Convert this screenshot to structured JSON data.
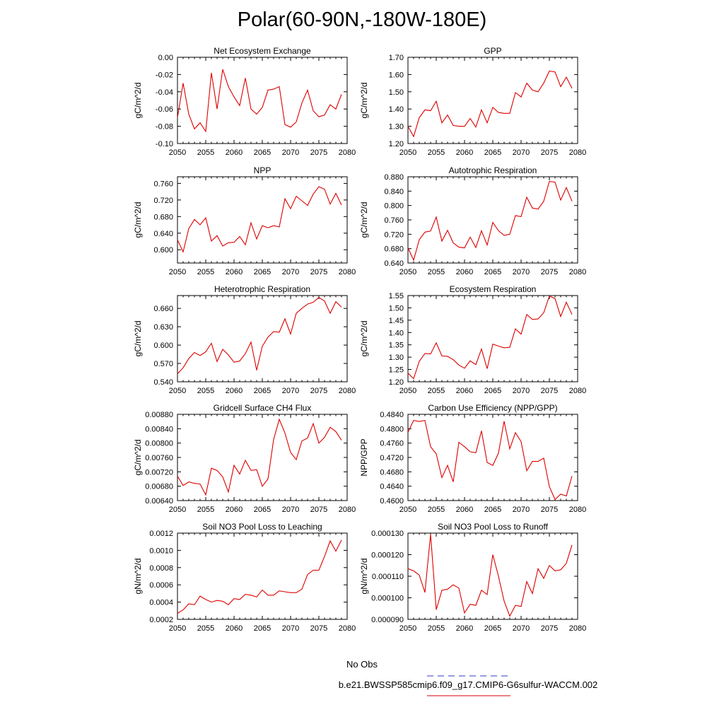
{
  "figure": {
    "title": "Polar(60-90N,-180W-180E)"
  },
  "legend": {
    "obs_label": "No Obs",
    "obs_color": "#3333cc",
    "model_label": "b.e21.BWSSP585cmip6.f09_g17.CMIP6-G6sulfur-WACCM.002",
    "model_color": "#dd0000"
  },
  "chart_data": [
    {
      "type": "line",
      "title": "Net Ecosystem Exchange",
      "ylabel": "gC/m^2/d",
      "xlim": [
        2050,
        2080
      ],
      "xticks": [
        "2050",
        "2055",
        "2060",
        "2065",
        "2070",
        "2075",
        "2080"
      ],
      "ylim": [
        -0.1,
        0.0
      ],
      "yticks": [
        "0.00",
        "-0.02",
        "-0.04",
        "-0.06",
        "-0.08",
        "-0.10"
      ],
      "x": [
        2050,
        2051,
        2052,
        2053,
        2054,
        2055,
        2056,
        2057,
        2058,
        2059,
        2060,
        2061,
        2062,
        2063,
        2064,
        2065,
        2066,
        2067,
        2068,
        2069,
        2070,
        2071,
        2072,
        2073,
        2074,
        2075,
        2076,
        2077,
        2078,
        2079
      ],
      "values": [
        -0.07,
        -0.03,
        -0.066,
        -0.083,
        -0.076,
        -0.086,
        -0.018,
        -0.06,
        -0.014,
        -0.034,
        -0.046,
        -0.056,
        -0.024,
        -0.06,
        -0.066,
        -0.058,
        -0.038,
        -0.037,
        -0.034,
        -0.078,
        -0.081,
        -0.075,
        -0.053,
        -0.038,
        -0.062,
        -0.069,
        -0.067,
        -0.055,
        -0.06,
        -0.043
      ],
      "grid": false
    },
    {
      "type": "line",
      "title": "GPP",
      "ylabel": "gC/m^2/d",
      "xlim": [
        2050,
        2080
      ],
      "xticks": [
        "2050",
        "2055",
        "2060",
        "2065",
        "2070",
        "2075",
        "2080"
      ],
      "ylim": [
        1.2,
        1.7
      ],
      "yticks": [
        "1.70",
        "1.60",
        "1.50",
        "1.40",
        "1.30",
        "1.20"
      ],
      "x": [
        2050,
        2051,
        2052,
        2053,
        2054,
        2055,
        2056,
        2057,
        2058,
        2059,
        2060,
        2061,
        2062,
        2063,
        2064,
        2065,
        2066,
        2067,
        2068,
        2069,
        2070,
        2071,
        2072,
        2073,
        2074,
        2075,
        2076,
        2077,
        2078,
        2079
      ],
      "values": [
        1.3,
        1.24,
        1.35,
        1.395,
        1.39,
        1.445,
        1.32,
        1.365,
        1.305,
        1.3,
        1.3,
        1.345,
        1.295,
        1.395,
        1.32,
        1.41,
        1.38,
        1.375,
        1.375,
        1.495,
        1.47,
        1.55,
        1.51,
        1.5,
        1.55,
        1.62,
        1.615,
        1.53,
        1.585,
        1.52
      ],
      "grid": false
    },
    {
      "type": "line",
      "title": "NPP",
      "ylabel": "gC/m^2/d",
      "xlim": [
        2050,
        2080
      ],
      "xticks": [
        "2050",
        "2055",
        "2060",
        "2065",
        "2070",
        "2075",
        "2080"
      ],
      "ylim": [
        0.568,
        0.776
      ],
      "yticks": [
        "0.760",
        "0.720",
        "0.680",
        "0.640",
        "0.600"
      ],
      "x": [
        2050,
        2051,
        2052,
        2053,
        2054,
        2055,
        2056,
        2057,
        2058,
        2059,
        2060,
        2061,
        2062,
        2063,
        2064,
        2065,
        2066,
        2067,
        2068,
        2069,
        2070,
        2071,
        2072,
        2073,
        2074,
        2075,
        2076,
        2077,
        2078,
        2079
      ],
      "values": [
        0.624,
        0.595,
        0.651,
        0.673,
        0.66,
        0.677,
        0.621,
        0.634,
        0.609,
        0.617,
        0.618,
        0.632,
        0.612,
        0.665,
        0.626,
        0.658,
        0.653,
        0.658,
        0.655,
        0.723,
        0.699,
        0.729,
        0.718,
        0.707,
        0.734,
        0.752,
        0.746,
        0.71,
        0.736,
        0.708
      ],
      "grid": false
    },
    {
      "type": "line",
      "title": "Autotrophic Respiration",
      "ylabel": "gC/m^2/d",
      "xlim": [
        2050,
        2080
      ],
      "xticks": [
        "2050",
        "2055",
        "2060",
        "2065",
        "2070",
        "2075",
        "2080"
      ],
      "ylim": [
        0.64,
        0.88
      ],
      "yticks": [
        "0.880",
        "0.840",
        "0.800",
        "0.760",
        "0.720",
        "0.680",
        "0.640"
      ],
      "x": [
        2050,
        2051,
        2052,
        2053,
        2054,
        2055,
        2056,
        2057,
        2058,
        2059,
        2060,
        2061,
        2062,
        2063,
        2064,
        2065,
        2066,
        2067,
        2068,
        2069,
        2070,
        2071,
        2072,
        2073,
        2074,
        2075,
        2076,
        2077,
        2078,
        2079
      ],
      "values": [
        0.682,
        0.648,
        0.705,
        0.726,
        0.729,
        0.768,
        0.701,
        0.731,
        0.696,
        0.684,
        0.682,
        0.712,
        0.683,
        0.73,
        0.69,
        0.753,
        0.73,
        0.717,
        0.72,
        0.772,
        0.769,
        0.823,
        0.793,
        0.79,
        0.812,
        0.867,
        0.865,
        0.815,
        0.85,
        0.812
      ],
      "grid": false
    },
    {
      "type": "line",
      "title": "Heterotrophic Respiration",
      "ylabel": "gC/m^2/d",
      "xlim": [
        2050,
        2080
      ],
      "xticks": [
        "2050",
        "2055",
        "2060",
        "2065",
        "2070",
        "2075",
        "2080"
      ],
      "ylim": [
        0.54,
        0.681
      ],
      "yticks": [
        "0.660",
        "0.630",
        "0.600",
        "0.570",
        "0.540"
      ],
      "x": [
        2050,
        2051,
        2052,
        2053,
        2054,
        2055,
        2056,
        2057,
        2058,
        2059,
        2060,
        2061,
        2062,
        2063,
        2064,
        2065,
        2066,
        2067,
        2068,
        2069,
        2070,
        2071,
        2072,
        2073,
        2074,
        2075,
        2076,
        2077,
        2078,
        2079
      ],
      "values": [
        0.553,
        0.563,
        0.578,
        0.588,
        0.583,
        0.589,
        0.603,
        0.573,
        0.593,
        0.584,
        0.572,
        0.574,
        0.586,
        0.605,
        0.559,
        0.598,
        0.613,
        0.622,
        0.621,
        0.643,
        0.618,
        0.652,
        0.66,
        0.667,
        0.67,
        0.678,
        0.672,
        0.652,
        0.671,
        0.662
      ],
      "grid": false
    },
    {
      "type": "line",
      "title": "Ecosystem Respiration",
      "ylabel": "gC/m^2/d",
      "xlim": [
        2050,
        2080
      ],
      "xticks": [
        "2050",
        "2055",
        "2060",
        "2065",
        "2070",
        "2075",
        "2080"
      ],
      "ylim": [
        1.2,
        1.55
      ],
      "yticks": [
        "1.55",
        "1.50",
        "1.45",
        "1.40",
        "1.35",
        "1.30",
        "1.25",
        "1.20"
      ],
      "x": [
        2050,
        2051,
        2052,
        2053,
        2054,
        2055,
        2056,
        2057,
        2058,
        2059,
        2060,
        2061,
        2062,
        2063,
        2064,
        2065,
        2066,
        2067,
        2068,
        2069,
        2070,
        2071,
        2072,
        2073,
        2074,
        2075,
        2076,
        2077,
        2078,
        2079
      ],
      "values": [
        1.235,
        1.213,
        1.283,
        1.315,
        1.313,
        1.358,
        1.305,
        1.303,
        1.29,
        1.268,
        1.255,
        1.285,
        1.27,
        1.333,
        1.253,
        1.353,
        1.345,
        1.338,
        1.34,
        1.415,
        1.393,
        1.473,
        1.453,
        1.455,
        1.48,
        1.548,
        1.538,
        1.465,
        1.523,
        1.473
      ],
      "grid": false
    },
    {
      "type": "line",
      "title": "Gridcell Surface CH4 Flux",
      "ylabel": "gC/m^2/d",
      "xlim": [
        2050,
        2080
      ],
      "xticks": [
        "2050",
        "2055",
        "2060",
        "2065",
        "2070",
        "2075",
        "2080"
      ],
      "ylim": [
        0.0064,
        0.0088
      ],
      "yticks": [
        "0.00880",
        "0.00840",
        "0.00800",
        "0.00760",
        "0.00720",
        "0.00680",
        "0.00640"
      ],
      "x": [
        2050,
        2051,
        2052,
        2053,
        2054,
        2055,
        2056,
        2057,
        2058,
        2059,
        2060,
        2061,
        2062,
        2063,
        2064,
        2065,
        2066,
        2067,
        2068,
        2069,
        2070,
        2071,
        2072,
        2073,
        2074,
        2075,
        2076,
        2077,
        2078,
        2079
      ],
      "values": [
        0.00708,
        0.00682,
        0.00692,
        0.00688,
        0.00686,
        0.00656,
        0.0073,
        0.00724,
        0.00706,
        0.00664,
        0.00738,
        0.00714,
        0.00752,
        0.00724,
        0.00726,
        0.0068,
        0.007,
        0.0081,
        0.00866,
        0.00828,
        0.00774,
        0.00754,
        0.00806,
        0.00814,
        0.00854,
        0.008,
        0.00816,
        0.00844,
        0.00832,
        0.00808
      ],
      "grid": false
    },
    {
      "type": "line",
      "title": "Carbon Use Efficiency (NPP/GPP)",
      "ylabel": "NPP/GPP",
      "xlim": [
        2050,
        2080
      ],
      "xticks": [
        "2050",
        "2055",
        "2060",
        "2065",
        "2070",
        "2075",
        "2080"
      ],
      "ylim": [
        0.46,
        0.484
      ],
      "yticks": [
        "0.4840",
        "0.4800",
        "0.4760",
        "0.4720",
        "0.4680",
        "0.4640",
        "0.4600"
      ],
      "x": [
        2050,
        2051,
        2052,
        2053,
        2054,
        2055,
        2056,
        2057,
        2058,
        2059,
        2060,
        2061,
        2062,
        2063,
        2064,
        2065,
        2066,
        2067,
        2068,
        2069,
        2070,
        2071,
        2072,
        2073,
        2074,
        2075,
        2076,
        2077,
        2078,
        2079
      ],
      "values": [
        0.479,
        0.4823,
        0.482,
        0.4823,
        0.475,
        0.473,
        0.4664,
        0.4698,
        0.4652,
        0.4762,
        0.475,
        0.4736,
        0.4733,
        0.4794,
        0.4706,
        0.4698,
        0.4732,
        0.4821,
        0.4744,
        0.4789,
        0.4764,
        0.4683,
        0.4709,
        0.4709,
        0.4718,
        0.4639,
        0.4603,
        0.4618,
        0.4613,
        0.4668
      ],
      "grid": false
    },
    {
      "type": "line",
      "title": "Soil NO3 Pool Loss to Leaching",
      "ylabel": "gN/m^2/d",
      "xlim": [
        2050,
        2080
      ],
      "xticks": [
        "2050",
        "2055",
        "2060",
        "2065",
        "2070",
        "2075",
        "2080"
      ],
      "ylim": [
        0.0002,
        0.0012
      ],
      "yticks": [
        "0.0012",
        "0.0010",
        "0.0008",
        "0.0006",
        "0.0004",
        "0.0002"
      ],
      "x": [
        2050,
        2051,
        2052,
        2053,
        2054,
        2055,
        2056,
        2057,
        2058,
        2059,
        2060,
        2061,
        2062,
        2063,
        2064,
        2065,
        2066,
        2067,
        2068,
        2069,
        2070,
        2071,
        2072,
        2073,
        2074,
        2075,
        2076,
        2077,
        2078,
        2079
      ],
      "values": [
        0.00027,
        0.00031,
        0.00038,
        0.00037,
        0.00047,
        0.00043,
        0.0004,
        0.00042,
        0.00041,
        0.00037,
        0.00044,
        0.00043,
        0.00049,
        0.00048,
        0.00046,
        0.00054,
        0.00048,
        0.00048,
        0.00053,
        0.00052,
        0.00051,
        0.00051,
        0.00055,
        0.00072,
        0.00077,
        0.00077,
        0.00093,
        0.00111,
        0.00099,
        0.00112
      ],
      "grid": false
    },
    {
      "type": "line",
      "title": "Soil NO3 Pool Loss to Runoff",
      "ylabel": "gN/m^2/d",
      "xlim": [
        2050,
        2080
      ],
      "xticks": [
        "2050",
        "2055",
        "2060",
        "2065",
        "2070",
        "2075",
        "2080"
      ],
      "ylim": [
        9e-05,
        0.00013
      ],
      "yticks": [
        "0.000130",
        "0.000120",
        "0.000110",
        "0.000100",
        "0.000090"
      ],
      "x": [
        2050,
        2051,
        2052,
        2053,
        2054,
        2055,
        2056,
        2057,
        2058,
        2059,
        2060,
        2061,
        2062,
        2063,
        2064,
        2065,
        2066,
        2067,
        2068,
        2069,
        2070,
        2071,
        2072,
        2073,
        2074,
        2075,
        2076,
        2077,
        2078,
        2079
      ],
      "values": [
        0.0001135,
        0.0001125,
        0.0001105,
        0.0001025,
        0.0001295,
        9.45e-05,
        0.0001035,
        0.000104,
        0.000106,
        0.0001045,
        9.3e-05,
        9.7e-05,
        9.65e-05,
        0.0001035,
        0.0001015,
        0.00012,
        0.00011,
        9.85e-05,
        9.15e-05,
        9.65e-05,
        9.6e-05,
        0.0001075,
        0.000102,
        0.0001135,
        0.000109,
        0.000115,
        0.0001125,
        0.000113,
        0.000116,
        0.0001245
      ],
      "grid": false
    }
  ]
}
